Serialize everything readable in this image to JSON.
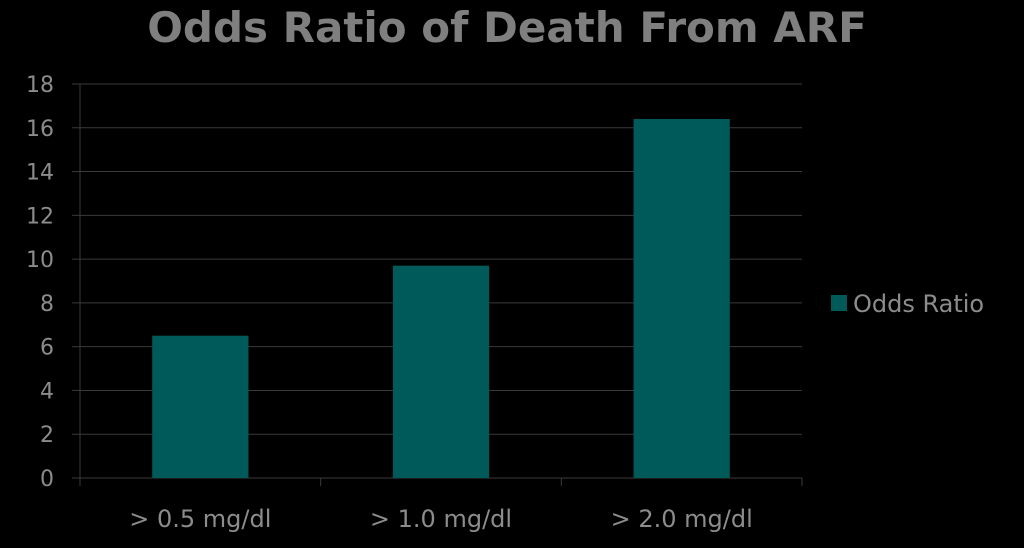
{
  "chart_data": {
    "type": "bar",
    "title": "Odds Ratio of Death From ARF",
    "categories": [
      "> 0.5 mg/dl",
      "> 1.0 mg/dl",
      "> 2.0 mg/dl"
    ],
    "series": [
      {
        "name": "Odds Ratio",
        "values": [
          6.5,
          9.7,
          16.4
        ],
        "color": "#005a5a"
      }
    ],
    "ylim": [
      0,
      18
    ],
    "yticks": [
      0,
      2,
      4,
      6,
      8,
      10,
      12,
      14,
      16,
      18
    ],
    "grid": true,
    "legend_position": "right",
    "colors": {
      "background": "#000000",
      "text": "#8c8c8c",
      "title": "#7f7f7f",
      "gridline": "#3a3a3a"
    }
  }
}
